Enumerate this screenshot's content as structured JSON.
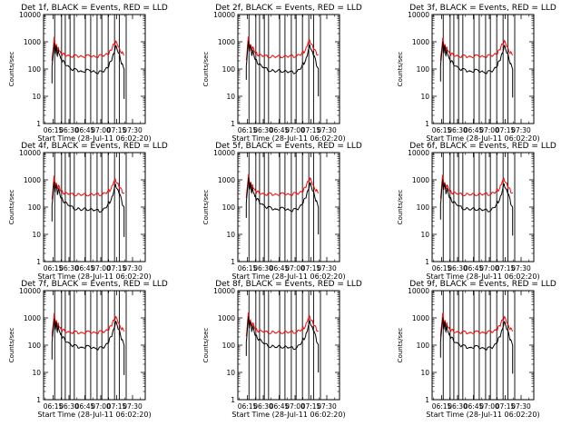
{
  "chart_data": {
    "type": "line",
    "xlabel": "Start Time (28-Jul-11 06:02:20)",
    "ylabel": "Counts/sec",
    "yscale": "log",
    "ylim": [
      1,
      10000
    ],
    "xlim_minutes": [
      6,
      102
    ],
    "y_ticks": [
      {
        "value": 1,
        "label": "1"
      },
      {
        "value": 10,
        "label": "10"
      },
      {
        "value": 100,
        "label": "100"
      },
      {
        "value": 1000,
        "label": "1000"
      },
      {
        "value": 10000,
        "label": "10000"
      }
    ],
    "x_ticks": [
      {
        "minute": 15,
        "label": "06:15"
      },
      {
        "minute": 30,
        "label": "06:30"
      },
      {
        "minute": 45,
        "label": "06:45"
      },
      {
        "minute": 60,
        "label": "07:00"
      },
      {
        "minute": 75,
        "label": "07:15"
      },
      {
        "minute": 90,
        "label": "07:30"
      }
    ],
    "vertical_lines_minutes": [
      16.5,
      23,
      26.5,
      31,
      35,
      45.5,
      50.5,
      56.5,
      61,
      67,
      73,
      77.5,
      84
    ],
    "series_defs": [
      {
        "name": "Events",
        "color": "#000000"
      },
      {
        "name": "LLD",
        "color": "#ff0000"
      }
    ],
    "x_minutes": [
      10,
      14,
      16,
      17,
      18,
      19,
      20,
      22,
      24,
      26,
      30,
      34,
      38,
      42,
      46,
      50,
      54,
      58,
      62,
      66,
      68,
      70,
      72,
      74,
      76,
      78,
      80,
      82,
      84,
      85
    ],
    "panels": [
      {
        "title": "Det 1f, BLACK = Events, RED = LLD",
        "x_start": 14,
        "x_end": 82,
        "y_start_events": 30,
        "y_end_events": 8,
        "events": [
          null,
          120,
          900,
          400,
          700,
          300,
          500,
          250,
          200,
          160,
          120,
          95,
          90,
          80,
          90,
          85,
          80,
          75,
          80,
          110,
          150,
          200,
          350,
          700,
          450,
          300,
          150,
          100,
          null,
          null
        ],
        "lld": [
          null,
          200,
          1500,
          600,
          800,
          500,
          600,
          400,
          350,
          330,
          310,
          300,
          300,
          290,
          300,
          300,
          290,
          300,
          310,
          350,
          400,
          500,
          800,
          1000,
          750,
          500,
          400,
          320,
          null,
          null
        ]
      },
      {
        "title": "Det 2f, BLACK = Events, RED = LLD",
        "x_start": 14,
        "x_end": 82,
        "y_start_events": 40,
        "y_end_events": 10,
        "events": [
          null,
          130,
          1100,
          450,
          750,
          320,
          480,
          240,
          190,
          150,
          115,
          95,
          88,
          80,
          88,
          84,
          78,
          75,
          82,
          115,
          160,
          210,
          380,
          750,
          450,
          310,
          160,
          100,
          null,
          null
        ],
        "lld": [
          null,
          210,
          1600,
          650,
          820,
          520,
          620,
          420,
          360,
          330,
          300,
          290,
          290,
          280,
          290,
          300,
          290,
          300,
          310,
          360,
          420,
          520,
          850,
          1100,
          780,
          520,
          400,
          320,
          null,
          null
        ]
      },
      {
        "title": "Det 3f, BLACK = Events, RED = LLD",
        "x_start": 14,
        "x_end": 82,
        "y_start_events": 35,
        "y_end_events": 9,
        "events": [
          null,
          125,
          1000,
          420,
          720,
          310,
          490,
          245,
          195,
          155,
          118,
          96,
          89,
          81,
          89,
          85,
          79,
          76,
          81,
          112,
          155,
          205,
          360,
          720,
          440,
          305,
          155,
          100,
          null,
          null
        ],
        "lld": [
          null,
          200,
          1400,
          620,
          800,
          510,
          610,
          410,
          355,
          330,
          305,
          295,
          295,
          285,
          295,
          300,
          290,
          300,
          310,
          355,
          410,
          510,
          820,
          1050,
          760,
          510,
          400,
          320,
          null,
          null
        ]
      },
      {
        "title": "Det 4f, BLACK = Events, RED = LLD",
        "x_start": 14,
        "x_end": 82,
        "y_start_events": 30,
        "y_end_events": 8,
        "events": [
          null,
          120,
          850,
          380,
          680,
          290,
          470,
          235,
          185,
          150,
          115,
          92,
          87,
          78,
          87,
          83,
          77,
          73,
          78,
          108,
          148,
          195,
          340,
          680,
          430,
          295,
          150,
          98,
          null,
          null
        ],
        "lld": [
          null,
          195,
          1450,
          610,
          790,
          505,
          600,
          405,
          350,
          325,
          300,
          290,
          290,
          280,
          290,
          295,
          285,
          295,
          305,
          350,
          405,
          505,
          800,
          1000,
          740,
          505,
          395,
          315,
          null,
          null
        ]
      },
      {
        "title": "Det 5f, BLACK = Events, RED = LLD",
        "x_start": 14,
        "x_end": 82,
        "y_start_events": 40,
        "y_end_events": 10,
        "events": [
          null,
          135,
          1200,
          470,
          770,
          330,
          500,
          250,
          200,
          160,
          120,
          97,
          90,
          82,
          90,
          86,
          80,
          77,
          83,
          118,
          165,
          215,
          390,
          770,
          460,
          315,
          165,
          102,
          null,
          null
        ],
        "lld": [
          null,
          215,
          1650,
          660,
          830,
          530,
          630,
          425,
          365,
          335,
          310,
          300,
          300,
          290,
          300,
          305,
          295,
          305,
          315,
          365,
          425,
          530,
          870,
          1120,
          790,
          530,
          410,
          325,
          null,
          null
        ]
      },
      {
        "title": "Det 6f, BLACK = Events, RED = LLD",
        "x_start": 14,
        "x_end": 82,
        "y_start_events": 35,
        "y_end_events": 9,
        "events": [
          null,
          128,
          1050,
          430,
          730,
          315,
          485,
          242,
          192,
          152,
          117,
          94,
          88,
          80,
          88,
          84,
          78,
          75,
          80,
          110,
          152,
          202,
          355,
          710,
          445,
          300,
          152,
          99,
          null,
          null
        ],
        "lld": [
          null,
          205,
          1550,
          640,
          810,
          515,
          615,
          415,
          358,
          332,
          305,
          295,
          295,
          285,
          295,
          302,
          292,
          302,
          312,
          358,
          415,
          515,
          830,
          1080,
          770,
          515,
          402,
          322,
          null,
          null
        ]
      },
      {
        "title": "Det 7f, BLACK = Events, RED = LLD",
        "x_start": 14,
        "x_end": 82,
        "y_start_events": 30,
        "y_end_events": 8,
        "events": [
          null,
          122,
          950,
          410,
          710,
          305,
          495,
          248,
          198,
          158,
          119,
          96,
          89,
          81,
          89,
          85,
          79,
          76,
          81,
          113,
          156,
          206,
          365,
          730,
          448,
          308,
          156,
          101,
          null,
          null
        ],
        "lld": [
          null,
          208,
          1500,
          630,
          805,
          512,
          612,
          412,
          356,
          331,
          306,
          296,
          296,
          286,
          296,
          301,
          291,
          301,
          311,
          356,
          412,
          512,
          825,
          1060,
          765,
          512,
          401,
          321,
          null,
          null
        ]
      },
      {
        "title": "Det 8f, BLACK = Events, RED = LLD",
        "x_start": 14,
        "x_end": 82,
        "y_start_events": 40,
        "y_end_events": 10,
        "events": [
          null,
          132,
          1150,
          460,
          760,
          325,
          505,
          252,
          202,
          162,
          121,
          98,
          91,
          83,
          91,
          87,
          81,
          78,
          84,
          120,
          168,
          218,
          395,
          780,
          465,
          318,
          168,
          103,
          null,
          null
        ],
        "lld": [
          null,
          212,
          1620,
          655,
          825,
          525,
          625,
          422,
          362,
          334,
          309,
          299,
          299,
          289,
          299,
          304,
          294,
          304,
          314,
          362,
          422,
          525,
          860,
          1110,
          785,
          525,
          408,
          324,
          null,
          null
        ]
      },
      {
        "title": "Det 9f, BLACK = Events, RED = LLD",
        "x_start": 14,
        "x_end": 82,
        "y_start_events": 35,
        "y_end_events": 9,
        "events": [
          null,
          126,
          1020,
          425,
          725,
          312,
          488,
          244,
          194,
          154,
          118,
          95,
          88,
          80,
          88,
          84,
          78,
          75,
          80,
          111,
          153,
          203,
          358,
          715,
          442,
          302,
          153,
          100,
          null,
          null
        ],
        "lld": [
          null,
          204,
          1530,
          635,
          808,
          514,
          614,
          414,
          357,
          331,
          305,
          295,
          295,
          285,
          295,
          301,
          291,
          301,
          311,
          357,
          414,
          514,
          828,
          1070,
          768,
          514,
          401,
          321,
          null,
          null
        ]
      }
    ]
  }
}
